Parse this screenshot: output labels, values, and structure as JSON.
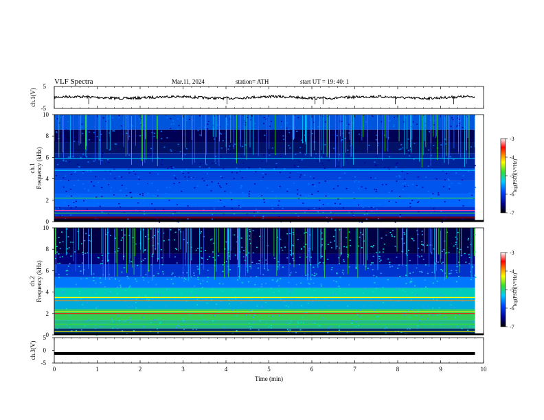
{
  "header": {
    "title": "VLF  Spectra",
    "date": "Mar.11, 2024",
    "station": "station= ATH",
    "start_ut": "start  UT  =    19: 40: 1"
  },
  "chart_data": [
    {
      "type": "line",
      "panel": "ch1-waveform",
      "ylabel": "ch.1(V)",
      "ylim": [
        -5,
        5
      ],
      "yticks": [
        "5",
        "-5"
      ],
      "xlim": [
        0,
        10
      ],
      "description_values": "noisy waveform near 0 V"
    },
    {
      "type": "heatmap",
      "panel": "ch1-spectrogram",
      "ylabel_line1": "ch.1",
      "ylabel_line2": "Frequency  (kHz)",
      "ylim": [
        0,
        10
      ],
      "yticks": [
        "0",
        "2",
        "4",
        "6",
        "8",
        "10"
      ],
      "xlim": [
        0,
        10
      ],
      "colorbar": {
        "label": "log(PSD)(V²/Hz)",
        "range": [
          -7,
          -3
        ],
        "ticks": [
          "-3",
          "-4",
          "-5",
          "-6",
          "-7"
        ]
      }
    },
    {
      "type": "heatmap",
      "panel": "ch2-spectrogram",
      "ylabel_line1": "ch.2",
      "ylabel_line2": "Frequency  (kHz)",
      "ylim": [
        0,
        10
      ],
      "yticks": [
        "0",
        "2",
        "4",
        "6",
        "8",
        "10"
      ],
      "xlim": [
        0,
        10
      ],
      "colorbar": {
        "label": "log(PSD)(V²/Hz)",
        "range": [
          -7,
          -3
        ],
        "ticks": [
          "-3",
          "-4",
          "-5",
          "-6",
          "-7"
        ]
      }
    },
    {
      "type": "line",
      "panel": "ch3-waveform",
      "ylabel": "ch.3(V)",
      "ylim": [
        -5,
        5
      ],
      "yticks": [
        "5",
        "0",
        "-5"
      ],
      "xlim": [
        0,
        10
      ],
      "constant_value": -1.2
    }
  ],
  "xaxis": {
    "label": "Time  (min)",
    "ticks": [
      "0",
      "1",
      "2",
      "3",
      "4",
      "5",
      "6",
      "7",
      "8",
      "9",
      "10"
    ],
    "data_end": 9.8
  },
  "colors": {
    "dark_blue": "#00008b",
    "blue": "#0033ff",
    "cyan": "#00ccff",
    "green": "#33dd33",
    "yellow": "#ffff00",
    "orange": "#ff8800",
    "red": "#ff0000",
    "black": "#000000"
  }
}
